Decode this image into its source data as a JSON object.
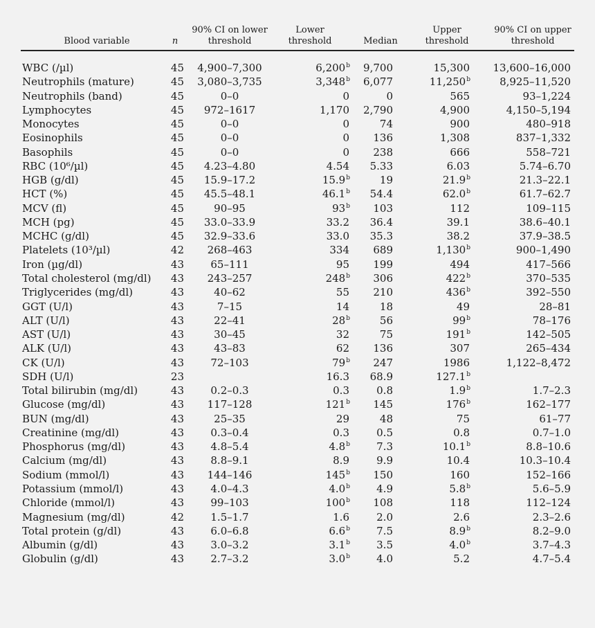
{
  "header": {
    "blood_variable": "Blood variable",
    "n": "n",
    "lower_ci": [
      "90% CI on lower",
      "threshold"
    ],
    "lower": [
      "Lower",
      "threshold"
    ],
    "median": "Median",
    "upper": [
      "Upper",
      "threshold"
    ],
    "upper_ci": [
      "90% CI on upper",
      "threshold"
    ]
  },
  "rows": [
    {
      "variable": "WBC (/µl)",
      "n": "45",
      "lower_ci": "4,900–7,300",
      "lower": "6,200",
      "lower_sup": "b",
      "median": "9,700",
      "upper": "15,300",
      "upper_sup": "",
      "upper_ci": "13,600–16,000"
    },
    {
      "variable": "Neutrophils (mature)",
      "n": "45",
      "lower_ci": "3,080–3,735",
      "lower": "3,348",
      "lower_sup": "b",
      "median": "6,077",
      "upper": "11,250",
      "upper_sup": "b",
      "upper_ci": "8,925–11,520"
    },
    {
      "variable": "Neutrophils (band)",
      "n": "45",
      "lower_ci": "0–0",
      "lower": "0",
      "lower_sup": "",
      "median": "0",
      "upper": "565",
      "upper_sup": "",
      "upper_ci": "93–1,224"
    },
    {
      "variable": "Lymphocytes",
      "n": "45",
      "lower_ci": "972–1617",
      "lower": "1,170",
      "lower_sup": "",
      "median": "2,790",
      "upper": "4,900",
      "upper_sup": "",
      "upper_ci": "4,150–5,194"
    },
    {
      "variable": "Monocytes",
      "n": "45",
      "lower_ci": "0–0",
      "lower": "0",
      "lower_sup": "",
      "median": "74",
      "upper": "900",
      "upper_sup": "",
      "upper_ci": "480–918"
    },
    {
      "variable": "Eosinophils",
      "n": "45",
      "lower_ci": "0–0",
      "lower": "0",
      "lower_sup": "",
      "median": "136",
      "upper": "1,308",
      "upper_sup": "",
      "upper_ci": "837–1,332"
    },
    {
      "variable": "Basophils",
      "n": "45",
      "lower_ci": "0–0",
      "lower": "0",
      "lower_sup": "",
      "median": "238",
      "upper": "666",
      "upper_sup": "",
      "upper_ci": "558–721"
    },
    {
      "variable": "RBC (10⁶/µl)",
      "n": "45",
      "lower_ci": "4.23–4.80",
      "lower": "4.54",
      "lower_sup": "",
      "median": "5.33",
      "upper": "6.03",
      "upper_sup": "",
      "upper_ci": "5.74–6.70"
    },
    {
      "variable": "HGB (g/dl)",
      "n": "45",
      "lower_ci": "15.9–17.2",
      "lower": "15.9",
      "lower_sup": "b",
      "median": "19",
      "upper": "21.9",
      "upper_sup": "b",
      "upper_ci": "21.3–22.1"
    },
    {
      "variable": "HCT (%)",
      "n": "45",
      "lower_ci": "45.5–48.1",
      "lower": "46.1",
      "lower_sup": "b",
      "median": "54.4",
      "upper": "62.0",
      "upper_sup": "b",
      "upper_ci": "61.7–62.7"
    },
    {
      "variable": "MCV (fl)",
      "n": "45",
      "lower_ci": "90–95",
      "lower": "93",
      "lower_sup": "b",
      "median": "103",
      "upper": "112",
      "upper_sup": "",
      "upper_ci": "109–115"
    },
    {
      "variable": "MCH (pg)",
      "n": "45",
      "lower_ci": "33.0–33.9",
      "lower": "33.2",
      "lower_sup": "",
      "median": "36.4",
      "upper": "39.1",
      "upper_sup": "",
      "upper_ci": "38.6–40.1"
    },
    {
      "variable": "MCHC (g/dl)",
      "n": "45",
      "lower_ci": "32.9–33.6",
      "lower": "33.0",
      "lower_sup": "",
      "median": "35.3",
      "upper": "38.2",
      "upper_sup": "",
      "upper_ci": "37.9–38.5"
    },
    {
      "variable": "Platelets (10³/µl)",
      "n": "42",
      "lower_ci": "268–463",
      "lower": "334",
      "lower_sup": "",
      "median": "689",
      "upper": "1,130",
      "upper_sup": "b",
      "upper_ci": "900–1,490"
    },
    {
      "variable": "Iron (µg/dl)",
      "n": "43",
      "lower_ci": "65–111",
      "lower": "95",
      "lower_sup": "",
      "median": "199",
      "upper": "494",
      "upper_sup": "",
      "upper_ci": "417–566"
    },
    {
      "variable": "Total cholesterol (mg/dl)",
      "n": "43",
      "lower_ci": "243–257",
      "lower": "248",
      "lower_sup": "b",
      "median": "306",
      "upper": "422",
      "upper_sup": "b",
      "upper_ci": "370–535"
    },
    {
      "variable": "Triglycerides (mg/dl)",
      "n": "43",
      "lower_ci": "40–62",
      "lower": "55",
      "lower_sup": "",
      "median": "210",
      "upper": "436",
      "upper_sup": "b",
      "upper_ci": "392–550"
    },
    {
      "variable": "GGT (U/l)",
      "n": "43",
      "lower_ci": "7–15",
      "lower": "14",
      "lower_sup": "",
      "median": "18",
      "upper": "49",
      "upper_sup": "",
      "upper_ci": "28–81"
    },
    {
      "variable": "ALT (U/l)",
      "n": "43",
      "lower_ci": "22–41",
      "lower": "28",
      "lower_sup": "b",
      "median": "56",
      "upper": "99",
      "upper_sup": "b",
      "upper_ci": "78–176"
    },
    {
      "variable": "AST (U/l)",
      "n": "43",
      "lower_ci": "30–45",
      "lower": "32",
      "lower_sup": "",
      "median": "75",
      "upper": "191",
      "upper_sup": "b",
      "upper_ci": "142–505"
    },
    {
      "variable": "ALK (U/l)",
      "n": "43",
      "lower_ci": "43–83",
      "lower": "62",
      "lower_sup": "",
      "median": "136",
      "upper": "307",
      "upper_sup": "",
      "upper_ci": "265–434"
    },
    {
      "variable": "CK (U/l)",
      "n": "43",
      "lower_ci": "72–103",
      "lower": "79",
      "lower_sup": "b",
      "median": "247",
      "upper": "1986",
      "upper_sup": "",
      "upper_ci": "1,122–8,472"
    },
    {
      "variable": "SDH (U/l)",
      "n": "23",
      "lower_ci": "",
      "lower": "16.3",
      "lower_sup": "",
      "median": "68.9",
      "upper": "127.1",
      "upper_sup": "b",
      "upper_ci": ""
    },
    {
      "variable": "Total bilirubin (mg/dl)",
      "n": "43",
      "lower_ci": "0.2–0.3",
      "lower": "0.3",
      "lower_sup": "",
      "median": "0.8",
      "upper": "1.9",
      "upper_sup": "b",
      "upper_ci": "1.7–2.3"
    },
    {
      "variable": "Glucose (mg/dl)",
      "n": "43",
      "lower_ci": "117–128",
      "lower": "121",
      "lower_sup": "b",
      "median": "145",
      "upper": "176",
      "upper_sup": "b",
      "upper_ci": "162–177"
    },
    {
      "variable": "BUN (mg/dl)",
      "n": "43",
      "lower_ci": "25–35",
      "lower": "29",
      "lower_sup": "",
      "median": "48",
      "upper": "75",
      "upper_sup": "",
      "upper_ci": "61–77"
    },
    {
      "variable": "Creatinine (mg/dl)",
      "n": "43",
      "lower_ci": "0.3–0.4",
      "lower": "0.3",
      "lower_sup": "",
      "median": "0.5",
      "upper": "0.8",
      "upper_sup": "",
      "upper_ci": "0.7–1.0"
    },
    {
      "variable": "Phosphorus (mg/dl)",
      "n": "43",
      "lower_ci": "4.8–5.4",
      "lower": "4.8",
      "lower_sup": "b",
      "median": "7.3",
      "upper": "10.1",
      "upper_sup": "b",
      "upper_ci": "8.8–10.6"
    },
    {
      "variable": "Calcium (mg/dl)",
      "n": "43",
      "lower_ci": "8.8–9.1",
      "lower": "8.9",
      "lower_sup": "",
      "median": "9.9",
      "upper": "10.4",
      "upper_sup": "",
      "upper_ci": "10.3–10.4"
    },
    {
      "variable": "Sodium (mmol/l)",
      "n": "43",
      "lower_ci": "144–146",
      "lower": "145",
      "lower_sup": "b",
      "median": "150",
      "upper": "160",
      "upper_sup": "",
      "upper_ci": "152–166"
    },
    {
      "variable": "Potassium (mmol/l)",
      "n": "43",
      "lower_ci": "4.0–4.3",
      "lower": "4.0",
      "lower_sup": "b",
      "median": "4.9",
      "upper": "5.8",
      "upper_sup": "b",
      "upper_ci": "5.6–5.9"
    },
    {
      "variable": "Chloride (mmol/l)",
      "n": "43",
      "lower_ci": "99–103",
      "lower": "100",
      "lower_sup": "b",
      "median": "108",
      "upper": "118",
      "upper_sup": "",
      "upper_ci": "112–124"
    },
    {
      "variable": "Magnesium (mg/dl)",
      "n": "42",
      "lower_ci": "1.5–1.7",
      "lower": "1.6",
      "lower_sup": "",
      "median": "2.0",
      "upper": "2.6",
      "upper_sup": "",
      "upper_ci": "2.3–2.6"
    },
    {
      "variable": "Total protein (g/dl)",
      "n": "43",
      "lower_ci": "6.0–6.8",
      "lower": "6.6",
      "lower_sup": "b",
      "median": "7.5",
      "upper": "8.9",
      "upper_sup": "b",
      "upper_ci": "8.2–9.0"
    },
    {
      "variable": "Albumin (g/dl)",
      "n": "43",
      "lower_ci": "3.0–3.2",
      "lower": "3.1",
      "lower_sup": "b",
      "median": "3.5",
      "upper": "4.0",
      "upper_sup": "b",
      "upper_ci": "3.7–4.3"
    },
    {
      "variable": "Globulin (g/dl)",
      "n": "43",
      "lower_ci": "2.7–3.2",
      "lower": "3.0",
      "lower_sup": "b",
      "median": "4.0",
      "upper": "5.2",
      "upper_sup": "",
      "upper_ci": "4.7–5.4"
    }
  ]
}
